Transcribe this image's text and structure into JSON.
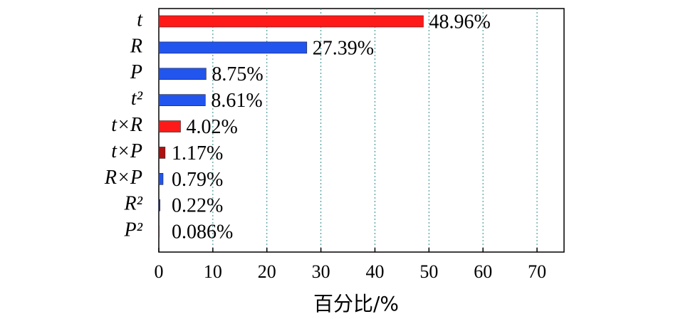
{
  "chart_data": {
    "type": "barh",
    "xlabel": "百分比/%",
    "categories": [
      "t",
      "R",
      "P",
      "t²",
      "t×R",
      "t×P",
      "R×P",
      "R²",
      "P²"
    ],
    "values": [
      48.96,
      27.39,
      8.75,
      8.61,
      4.02,
      1.17,
      0.79,
      0.22,
      0.086
    ],
    "value_labels": [
      "48.96%",
      "27.39%",
      "8.75%",
      "8.61%",
      "4.02%",
      "1.17%",
      "0.79%",
      "0.22%",
      "0.086%"
    ],
    "colors": [
      "#ff1a1a",
      "#2255ee",
      "#2255ee",
      "#2255ee",
      "#ff1a1a",
      "#b01010",
      "#2255ee",
      "#1133cc",
      "#b01010"
    ],
    "xlim": [
      0,
      75
    ],
    "xticks": [
      0,
      10,
      20,
      30,
      40,
      50,
      60,
      70
    ],
    "grid": true,
    "grid_color": "#2a8a8a"
  }
}
